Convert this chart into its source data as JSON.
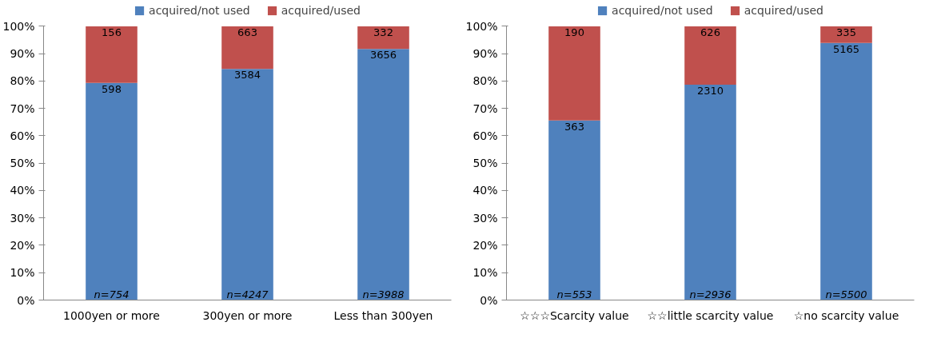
{
  "chart_data": [
    {
      "type": "bar",
      "stacked": true,
      "categories": [
        "1000yen or more",
        "300yen or more",
        "Less than 300yen"
      ],
      "series": [
        {
          "name": "acquired/not used",
          "color": "#4f81bd",
          "values": [
            79.3,
            84.4,
            91.7
          ]
        },
        {
          "name": "acquired/used",
          "color": "#c0504d",
          "values": [
            20.7,
            15.6,
            8.3
          ]
        }
      ],
      "ylim": [
        0,
        100
      ],
      "yticks": [
        {
          "value": 0,
          "label": "0%"
        },
        {
          "value": 10,
          "label": "10%"
        },
        {
          "value": 20,
          "label": "20%"
        },
        {
          "value": 30,
          "label": "30%"
        },
        {
          "value": 40,
          "label": "40%"
        },
        {
          "value": 50,
          "label": "50%"
        },
        {
          "value": 60,
          "label": "60%"
        },
        {
          "value": 70,
          "label": "70%"
        },
        {
          "value": 80,
          "label": "80%"
        },
        {
          "value": 90,
          "label": "90%"
        },
        {
          "value": 100,
          "label": "100%"
        }
      ],
      "annotations": [
        {
          "text": "598",
          "x": "1000yen or more",
          "y": 79.3
        },
        {
          "text": "3584",
          "x": "300yen or more",
          "y": 84.4
        },
        {
          "text": "3656",
          "x": "Less than 300yen",
          "y": 91.7
        },
        {
          "text": "156",
          "x": "1000yen or more",
          "y": 100
        },
        {
          "text": "663",
          "x": "300yen or more",
          "y": 100
        },
        {
          "text": "332",
          "x": "Less than 300yen",
          "y": 100
        },
        {
          "text": "n=754",
          "x": "1000yen or more",
          "y": 0
        },
        {
          "text": "n=4247",
          "x": "300yen or more",
          "y": 0
        },
        {
          "text": "n=3988",
          "x": "Less than 300yen",
          "y": 0
        }
      ],
      "legend": "top",
      "grid": false
    },
    {
      "type": "bar",
      "stacked": true,
      "categories": [
        "☆☆☆Scarcity value",
        "☆☆little scarcity value",
        "☆no scarcity value"
      ],
      "series": [
        {
          "name": "acquired/not used",
          "color": "#4f81bd",
          "values": [
            65.6,
            78.7,
            93.9
          ]
        },
        {
          "name": "acquired/used",
          "color": "#c0504d",
          "values": [
            34.4,
            21.3,
            6.1
          ]
        }
      ],
      "ylim": [
        0,
        100
      ],
      "yticks": [
        {
          "value": 0,
          "label": "0%"
        },
        {
          "value": 10,
          "label": "10%"
        },
        {
          "value": 20,
          "label": "20%"
        },
        {
          "value": 30,
          "label": "30%"
        },
        {
          "value": 40,
          "label": "40%"
        },
        {
          "value": 50,
          "label": "50%"
        },
        {
          "value": 60,
          "label": "60%"
        },
        {
          "value": 70,
          "label": "70%"
        },
        {
          "value": 80,
          "label": "80%"
        },
        {
          "value": 90,
          "label": "90%"
        },
        {
          "value": 100,
          "label": "100%"
        }
      ],
      "annotations": [
        {
          "text": "363",
          "x": "☆☆☆Scarcity value",
          "y": 65.6
        },
        {
          "text": "2310",
          "x": "☆☆little scarcity value",
          "y": 78.7
        },
        {
          "text": "5165",
          "x": "☆no scarcity value",
          "y": 93.9
        },
        {
          "text": "190",
          "x": "☆☆☆Scarcity value",
          "y": 100
        },
        {
          "text": "626",
          "x": "☆☆little scarcity value",
          "y": 100
        },
        {
          "text": "335",
          "x": "☆no scarcity value",
          "y": 100
        },
        {
          "text": "n=553",
          "x": "☆☆☆Scarcity value",
          "y": 0
        },
        {
          "text": "n=2936",
          "x": "☆☆little scarcity value",
          "y": 0
        },
        {
          "text": "n=5500",
          "x": "☆no scarcity value",
          "y": 0
        }
      ],
      "legend": "top",
      "grid": false
    }
  ]
}
